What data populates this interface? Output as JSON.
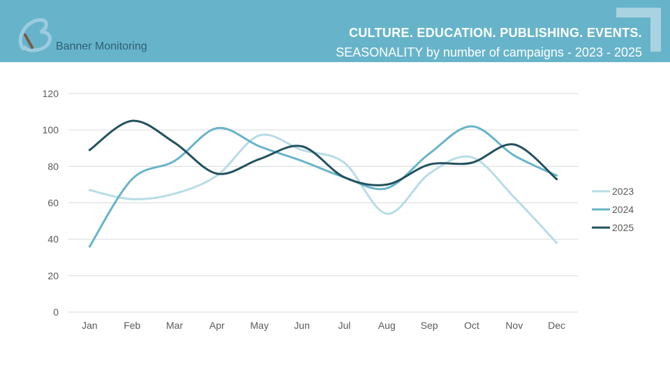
{
  "header": {
    "brand": "Banner Monitoring",
    "title": "CULTURE. EDUCATION. PUBLISHING. EVENTS.",
    "subtitle": "SEASONALITY by number of campaigns - 2023 - 2025",
    "color": "#67b4ca"
  },
  "chart_data": {
    "type": "line",
    "title": "SEASONALITY by number of campaigns - 2023 - 2025",
    "categories": [
      "Jan",
      "Feb",
      "Mar",
      "Apr",
      "May",
      "Jun",
      "Jul",
      "Aug",
      "Sep",
      "Oct",
      "Nov",
      "Dec"
    ],
    "ylim": [
      0,
      120
    ],
    "yticks": [
      0,
      20,
      40,
      60,
      80,
      100,
      120
    ],
    "grid": true,
    "legend": "right",
    "series": [
      {
        "name": "2023",
        "color": "#b7dce6",
        "values": [
          67,
          62,
          65,
          75,
          97,
          89,
          82,
          54,
          76,
          85,
          63,
          38
        ]
      },
      {
        "name": "2024",
        "color": "#67b4ca",
        "values": [
          36,
          73,
          83,
          101,
          91,
          83,
          74,
          68,
          87,
          102,
          86,
          75
        ]
      },
      {
        "name": "2025",
        "color": "#22515e",
        "values": [
          89,
          105,
          93,
          76,
          84,
          91,
          74,
          70,
          81,
          82,
          92,
          73
        ]
      }
    ]
  }
}
